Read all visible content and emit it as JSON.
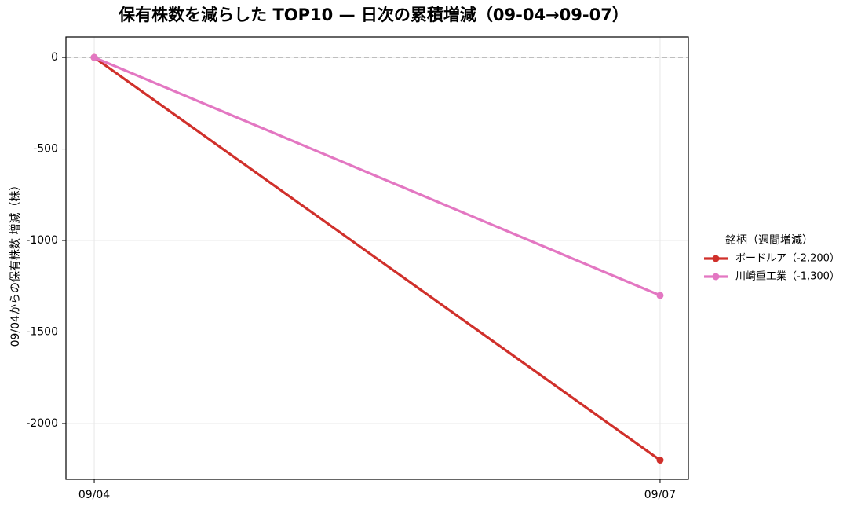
{
  "chart_data": {
    "type": "line",
    "title": "保有株数を減らした TOP10 — 日次の累積増減（09-04→09-07）",
    "y_label": "09/04からの保有株数 増減（株）",
    "categories": [
      "09/04",
      "09/07"
    ],
    "series": [
      {
        "name": "ボードルア（-2,200）",
        "color": "#d0302b",
        "values": [
          0,
          -2200
        ]
      },
      {
        "name": "川崎重工業（-1,300）",
        "color": "#e377c2",
        "values": [
          0,
          -1300
        ]
      }
    ],
    "legend_title": "銘柄（週間増減）",
    "legend": "right",
    "ylim": [
      -2305,
      112
    ],
    "yticks": [
      0,
      -500,
      -1000,
      -1500,
      -2000
    ],
    "hline": 0,
    "grid": true
  }
}
